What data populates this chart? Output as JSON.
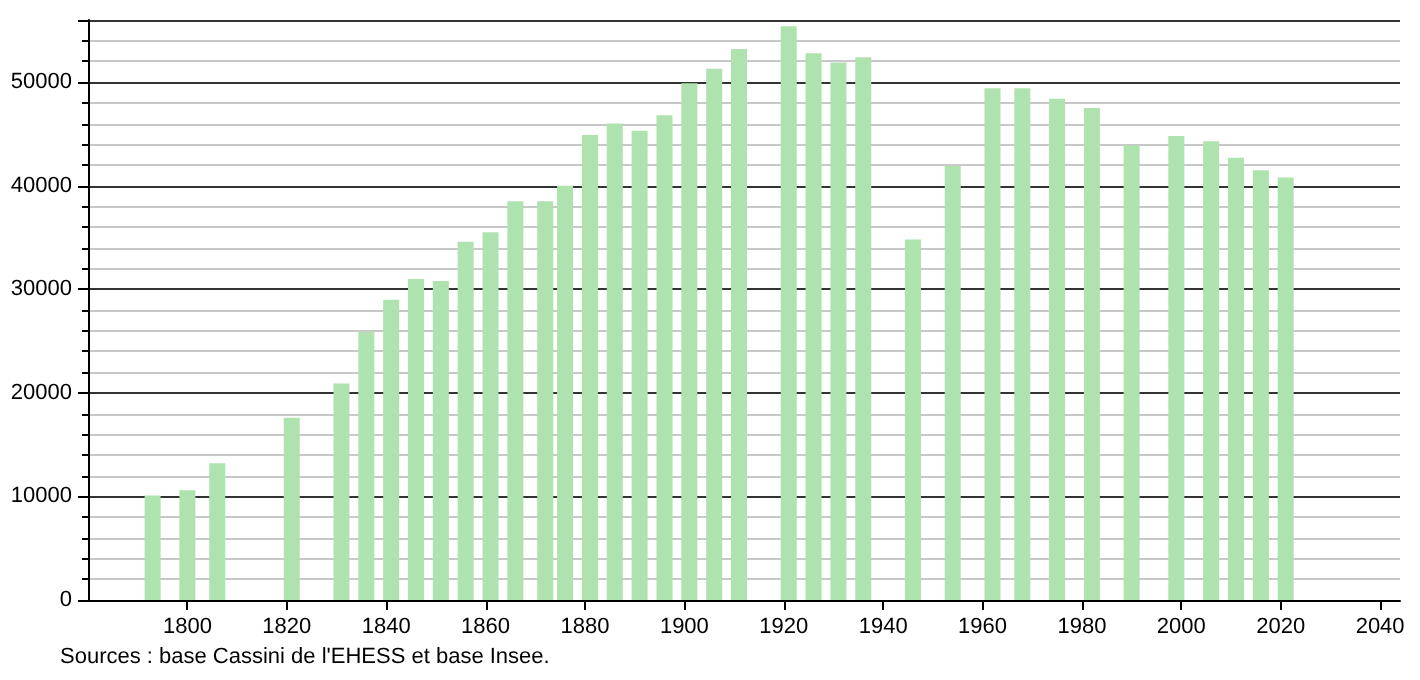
{
  "chart_data": {
    "type": "bar",
    "x": [
      1793,
      1800,
      1806,
      1821,
      1831,
      1836,
      1841,
      1846,
      1851,
      1856,
      1861,
      1866,
      1872,
      1876,
      1881,
      1886,
      1891,
      1896,
      1901,
      1906,
      1911,
      1921,
      1926,
      1931,
      1936,
      1946,
      1954,
      1962,
      1968,
      1975,
      1982,
      1990,
      1999,
      2006,
      2011,
      2016,
      2021
    ],
    "values": [
      10100,
      10600,
      13200,
      17600,
      20900,
      25900,
      29000,
      31000,
      30800,
      34600,
      35500,
      38500,
      38500,
      40000,
      44900,
      46000,
      45300,
      46800,
      49900,
      51300,
      53200,
      55400,
      52800,
      51900,
      52400,
      34800,
      41900,
      49400,
      49400,
      48400,
      47500,
      43900,
      44800,
      44300,
      42700,
      41500,
      40800
    ],
    "color": "#aee2ae",
    "xlim": [
      1780,
      2044
    ],
    "xticks": [
      1800,
      1820,
      1840,
      1860,
      1880,
      1900,
      1920,
      1940,
      1960,
      1980,
      2000,
      2020,
      2040
    ],
    "ylim": [
      0,
      56000
    ],
    "yticks": [
      0,
      10000,
      20000,
      30000,
      40000,
      50000
    ],
    "grid": "y",
    "annotations": [
      "Sources : base Cassini de l'EHESS et base Insee."
    ]
  }
}
